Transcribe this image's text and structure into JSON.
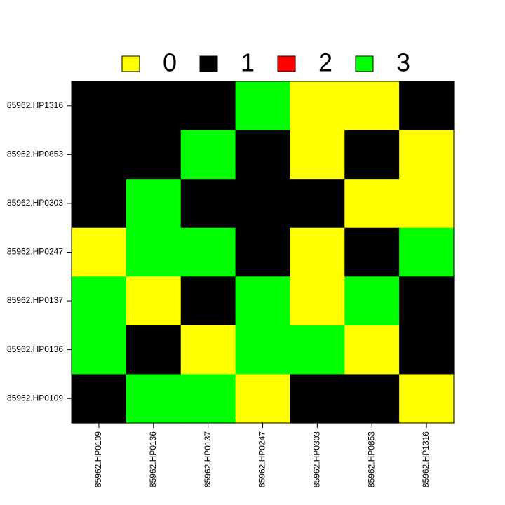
{
  "chart_data": {
    "type": "heatmap",
    "title": "",
    "xlabel": "",
    "ylabel": "",
    "x_categories": [
      "85962.HP0109",
      "85962.HP0136",
      "85962.HP0137",
      "85962.HP0247",
      "85962.HP0303",
      "85962.HP0853",
      "85962.HP1316"
    ],
    "y_categories": [
      "85962.HP1316",
      "85962.HP0853",
      "85962.HP0303",
      "85962.HP0247",
      "85962.HP0137",
      "85962.HP0136",
      "85962.HP0109"
    ],
    "values": [
      [
        1,
        1,
        1,
        3,
        0,
        0,
        1
      ],
      [
        1,
        1,
        3,
        1,
        0,
        1,
        0
      ],
      [
        1,
        3,
        1,
        1,
        1,
        0,
        0
      ],
      [
        0,
        3,
        3,
        1,
        0,
        1,
        3
      ],
      [
        3,
        0,
        1,
        3,
        0,
        3,
        1
      ],
      [
        3,
        1,
        0,
        3,
        3,
        0,
        1
      ],
      [
        1,
        3,
        3,
        0,
        1,
        1,
        0
      ]
    ],
    "legend": {
      "placement": "top",
      "entries": [
        {
          "label": "0",
          "color": "#ffff00"
        },
        {
          "label": "1",
          "color": "#000000"
        },
        {
          "label": "2",
          "color": "#ff0000"
        },
        {
          "label": "3",
          "color": "#00ff00"
        }
      ]
    }
  }
}
